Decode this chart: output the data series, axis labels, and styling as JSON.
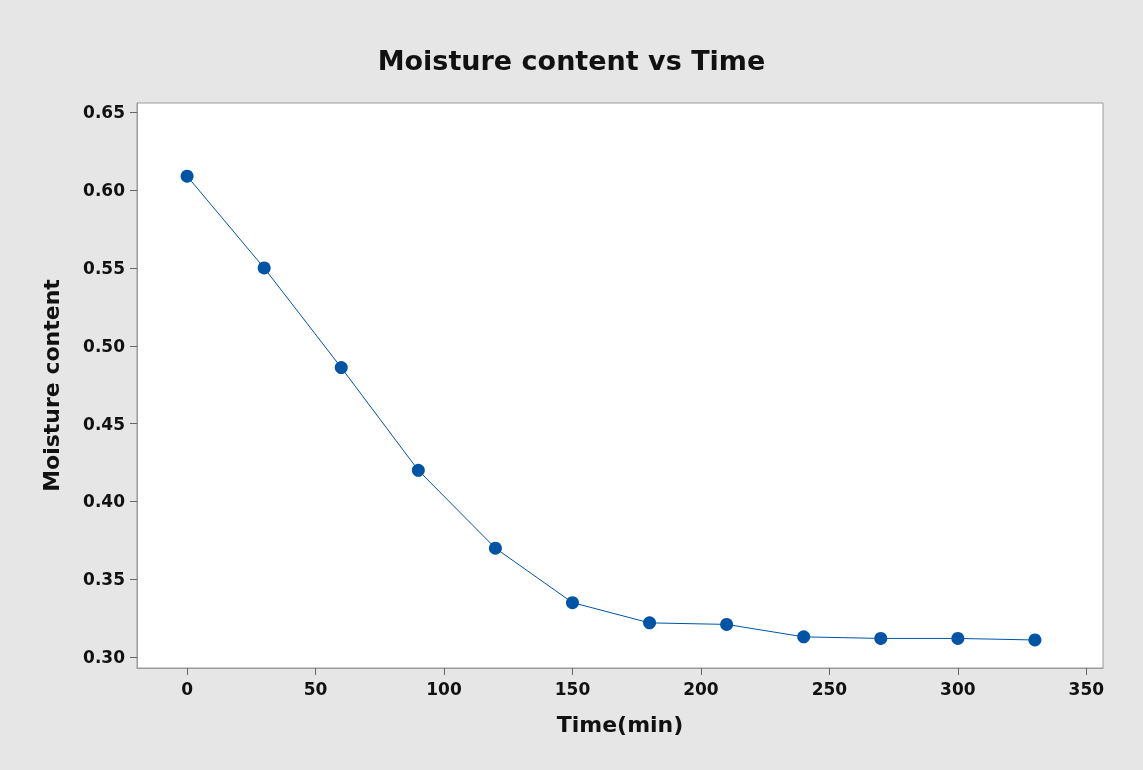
{
  "chart_data": {
    "type": "line",
    "title": "Moisture content vs Time",
    "xlabel": "Time(min)",
    "ylabel": "Moisture content",
    "x": [
      0,
      30,
      60,
      90,
      120,
      150,
      180,
      210,
      240,
      270,
      300,
      330
    ],
    "series": [
      {
        "color": "#0054a6",
        "values": [
          0.609,
          0.55,
          0.486,
          0.42,
          0.37,
          0.335,
          0.322,
          0.321,
          0.313,
          0.312,
          0.312,
          0.311
        ]
      }
    ],
    "xlim": [
      -19.5,
      356.5
    ],
    "ylim": [
      0.293,
      0.656
    ],
    "xticks": [
      0,
      50,
      100,
      150,
      200,
      250,
      300,
      350
    ],
    "yticks": [
      {
        "value": 0.3,
        "label": "0.30"
      },
      {
        "value": 0.35,
        "label": "0.35"
      },
      {
        "value": 0.4,
        "label": "0.40"
      },
      {
        "value": 0.45,
        "label": "0.45"
      },
      {
        "value": 0.5,
        "label": "0.50"
      },
      {
        "value": 0.55,
        "label": "0.55"
      },
      {
        "value": 0.6,
        "label": "0.60"
      },
      {
        "value": 0.65,
        "label": "0.65"
      }
    ],
    "marker": "circle",
    "line_style": "solid",
    "grid": false
  }
}
